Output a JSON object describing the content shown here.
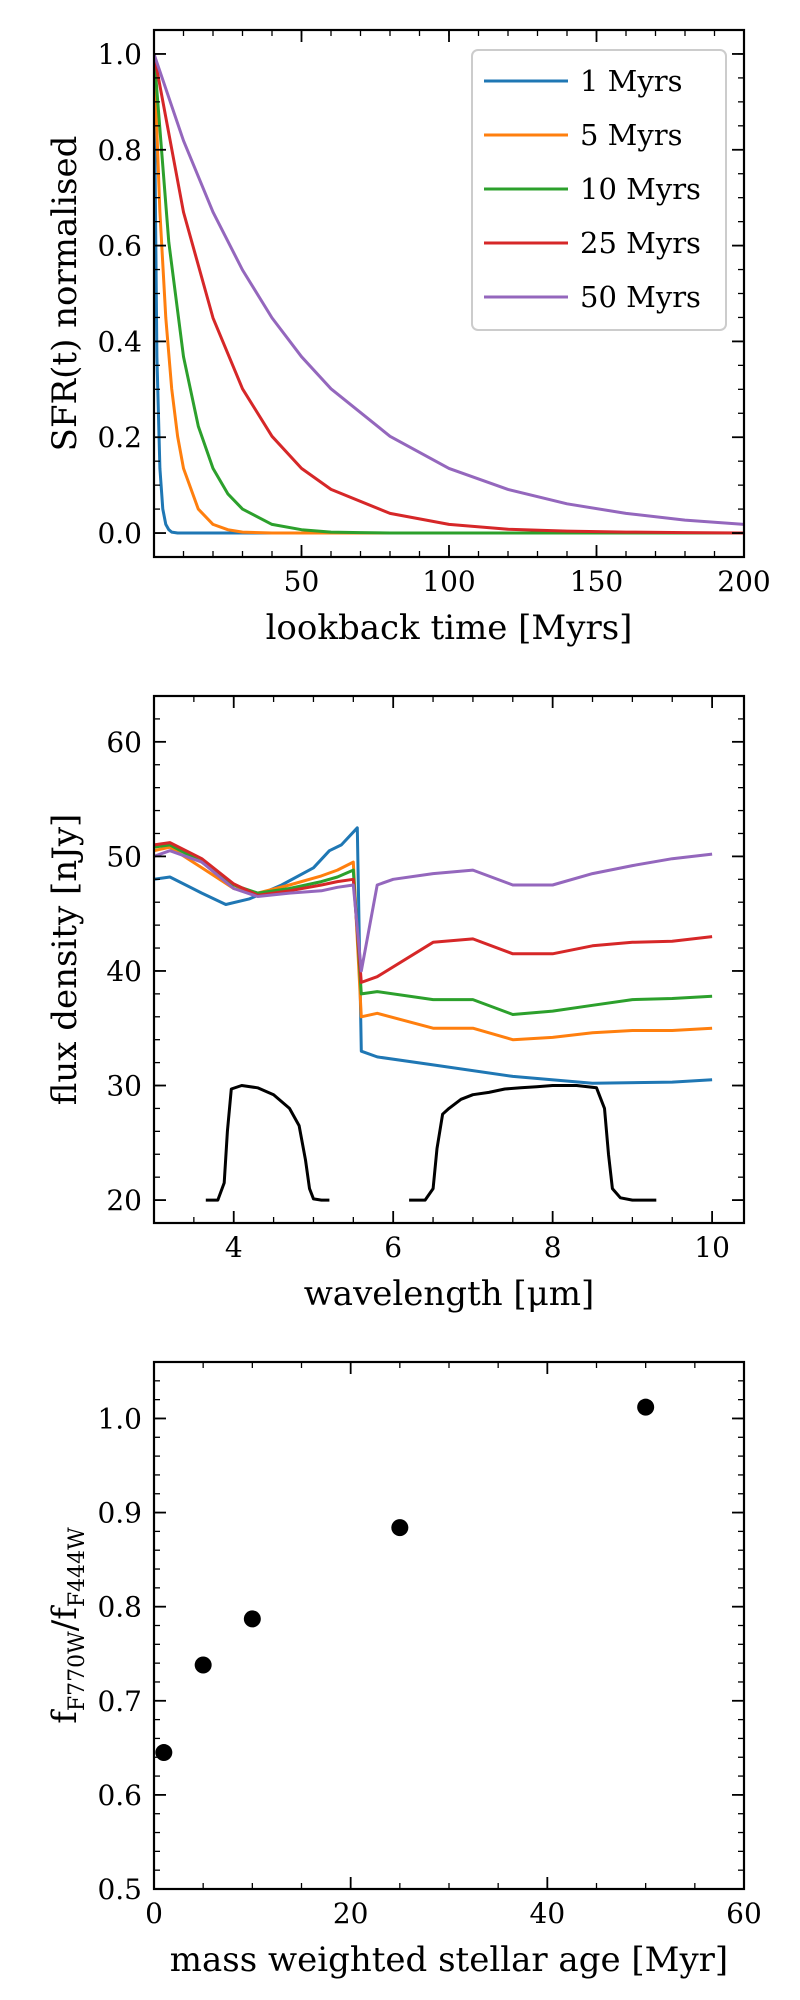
{
  "chart_data": [
    {
      "type": "line",
      "xlabel": "lookback time [Myrs]",
      "ylabel": "SFR(t) normalised",
      "xlim": [
        0,
        200
      ],
      "ylim": [
        -0.05,
        1.05
      ],
      "xticks": [
        50,
        100,
        150,
        200
      ],
      "xtick_labels": [
        "50",
        "100",
        "150",
        "200"
      ],
      "yticks": [
        0,
        0.2,
        0.4,
        0.6,
        0.8,
        1.0
      ],
      "ytick_labels": [
        "0.0",
        "0.2",
        "0.4",
        "0.6",
        "0.8",
        "1.0"
      ],
      "legend_position": "top-right",
      "series": [
        {
          "name": "1 Myrs",
          "tau": 1,
          "color": "#1f77b4",
          "x": [
            0,
            1,
            2,
            3,
            4,
            5,
            6,
            8,
            10,
            200
          ],
          "y": [
            1.0,
            0.368,
            0.135,
            0.05,
            0.018,
            0.007,
            0.002,
            0.0,
            0.0,
            0.0
          ]
        },
        {
          "name": "5 Myrs",
          "tau": 5,
          "color": "#ff7f0e",
          "x": [
            0,
            2,
            4,
            6,
            8,
            10,
            15,
            20,
            25,
            30,
            40,
            200
          ],
          "y": [
            1.0,
            0.67,
            0.449,
            0.301,
            0.202,
            0.135,
            0.05,
            0.018,
            0.007,
            0.002,
            0.0,
            0.0
          ]
        },
        {
          "name": "10 Myrs",
          "tau": 10,
          "color": "#2ca02c",
          "x": [
            0,
            5,
            10,
            15,
            20,
            25,
            30,
            40,
            50,
            60,
            70,
            80,
            200
          ],
          "y": [
            1.0,
            0.607,
            0.368,
            0.223,
            0.135,
            0.082,
            0.05,
            0.018,
            0.007,
            0.002,
            0.001,
            0.0,
            0.0
          ]
        },
        {
          "name": "25 Myrs",
          "tau": 25,
          "color": "#d62728",
          "x": [
            0,
            10,
            20,
            30,
            40,
            50,
            60,
            80,
            100,
            120,
            140,
            160,
            180,
            200
          ],
          "y": [
            1.0,
            0.67,
            0.449,
            0.301,
            0.202,
            0.135,
            0.091,
            0.041,
            0.018,
            0.008,
            0.004,
            0.002,
            0.001,
            0.0
          ]
        },
        {
          "name": "50 Myrs",
          "tau": 50,
          "color": "#9467bd",
          "x": [
            0,
            10,
            20,
            30,
            40,
            50,
            60,
            80,
            100,
            120,
            140,
            160,
            180,
            200
          ],
          "y": [
            1.0,
            0.819,
            0.67,
            0.549,
            0.449,
            0.368,
            0.301,
            0.202,
            0.135,
            0.091,
            0.061,
            0.041,
            0.027,
            0.018
          ]
        }
      ]
    },
    {
      "type": "line",
      "xlabel": "wavelength [μm]",
      "ylabel": "flux density [nJy]",
      "xlim": [
        3,
        10.4
      ],
      "ylim": [
        18,
        64
      ],
      "xticks": [
        4,
        6,
        8,
        10
      ],
      "xtick_labels": [
        "4",
        "6",
        "8",
        "10"
      ],
      "yticks": [
        20,
        30,
        40,
        50,
        60
      ],
      "ytick_labels": [
        "20",
        "30",
        "40",
        "50",
        "60"
      ],
      "series": [
        {
          "color": "#1f77b4",
          "x": [
            3.0,
            3.2,
            3.6,
            3.9,
            4.2,
            4.6,
            5.0,
            5.2,
            5.35,
            5.55,
            5.6,
            5.8,
            6.5,
            7.5,
            8.5,
            9.5,
            10.0
          ],
          "y": [
            48.0,
            48.2,
            46.8,
            45.8,
            46.3,
            47.5,
            49.0,
            50.5,
            51.0,
            52.5,
            33.0,
            32.5,
            31.8,
            30.8,
            30.2,
            30.3,
            30.5
          ]
        },
        {
          "color": "#ff7f0e",
          "x": [
            3.0,
            3.2,
            3.6,
            4.0,
            4.3,
            4.7,
            5.1,
            5.3,
            5.5,
            5.6,
            5.8,
            6.5,
            7.0,
            7.5,
            8.0,
            8.5,
            9.0,
            9.5,
            10.0
          ],
          "y": [
            50.5,
            50.8,
            49.0,
            47.2,
            46.8,
            47.5,
            48.3,
            48.8,
            49.5,
            36.0,
            36.3,
            35.0,
            35.0,
            34.0,
            34.2,
            34.6,
            34.8,
            34.8,
            35.0
          ]
        },
        {
          "color": "#2ca02c",
          "x": [
            3.0,
            3.2,
            3.6,
            4.0,
            4.3,
            4.7,
            5.1,
            5.3,
            5.5,
            5.6,
            5.8,
            6.5,
            7.0,
            7.5,
            8.0,
            8.5,
            9.0,
            9.5,
            10.0
          ],
          "y": [
            50.8,
            51.0,
            49.5,
            47.5,
            46.8,
            47.2,
            47.8,
            48.2,
            48.8,
            38.0,
            38.2,
            37.5,
            37.5,
            36.2,
            36.5,
            37.0,
            37.5,
            37.6,
            37.8
          ]
        },
        {
          "color": "#d62728",
          "x": [
            3.0,
            3.2,
            3.6,
            4.0,
            4.3,
            4.7,
            5.1,
            5.3,
            5.5,
            5.6,
            5.8,
            6.5,
            7.0,
            7.5,
            8.0,
            8.5,
            9.0,
            9.5,
            10.0
          ],
          "y": [
            51.0,
            51.2,
            49.8,
            47.6,
            46.6,
            47.0,
            47.5,
            47.8,
            48.0,
            39.0,
            39.5,
            42.5,
            42.8,
            41.5,
            41.5,
            42.2,
            42.5,
            42.6,
            43.0
          ]
        },
        {
          "color": "#9467bd",
          "x": [
            3.0,
            3.2,
            3.6,
            4.0,
            4.3,
            4.7,
            5.1,
            5.3,
            5.5,
            5.6,
            5.8,
            6.0,
            6.5,
            7.0,
            7.5,
            8.0,
            8.5,
            9.0,
            9.5,
            10.0
          ],
          "y": [
            50.0,
            50.5,
            49.5,
            47.2,
            46.5,
            46.8,
            47.0,
            47.3,
            47.5,
            40.0,
            47.5,
            48.0,
            48.5,
            48.8,
            47.5,
            47.5,
            48.5,
            49.2,
            49.8,
            50.2
          ]
        },
        {
          "name": "F444W",
          "color": "#000000",
          "x": [
            3.65,
            3.8,
            3.88,
            3.92,
            3.97,
            4.1,
            4.3,
            4.5,
            4.7,
            4.82,
            4.9,
            4.95,
            5.0,
            5.1,
            5.2
          ],
          "y": [
            20.0,
            20.0,
            21.5,
            26.0,
            29.7,
            30.0,
            29.8,
            29.2,
            28.0,
            26.5,
            23.5,
            21.0,
            20.1,
            20.0,
            20.0
          ]
        },
        {
          "name": "F770W",
          "color": "#000000",
          "x": [
            6.2,
            6.4,
            6.5,
            6.55,
            6.62,
            6.7,
            6.85,
            7.0,
            7.2,
            7.4,
            7.6,
            7.8,
            8.0,
            8.3,
            8.55,
            8.65,
            8.7,
            8.75,
            8.85,
            9.0,
            9.3
          ],
          "y": [
            20.0,
            20.0,
            21.0,
            24.5,
            27.5,
            28.0,
            28.8,
            29.2,
            29.4,
            29.7,
            29.8,
            29.9,
            30.0,
            30.0,
            29.8,
            28.0,
            24.0,
            21.0,
            20.2,
            20.0,
            20.0
          ]
        }
      ]
    },
    {
      "type": "scatter",
      "xlabel": "mass weighted stellar age [Myr]",
      "ylabel": "f_F770W/f_F444W",
      "xlim": [
        0,
        60
      ],
      "ylim": [
        0.5,
        1.06
      ],
      "xticks": [
        0,
        20,
        40,
        60
      ],
      "xtick_labels": [
        "0",
        "20",
        "40",
        "60"
      ],
      "yticks": [
        0.5,
        0.6,
        0.7,
        0.8,
        0.9,
        1.0
      ],
      "ytick_labels": [
        "0.5",
        "0.6",
        "0.7",
        "0.8",
        "0.9",
        "1.0"
      ],
      "series": [
        {
          "color": "#000000",
          "x": [
            1,
            5,
            10,
            25,
            50
          ],
          "y": [
            0.645,
            0.738,
            0.787,
            0.884,
            1.012
          ]
        }
      ]
    }
  ]
}
